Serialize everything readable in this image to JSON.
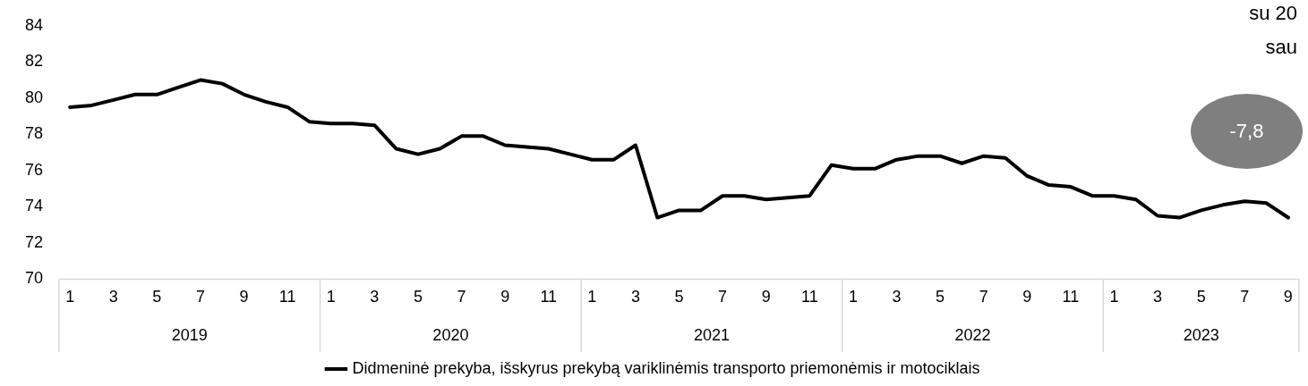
{
  "chart_data": {
    "type": "line",
    "categories": [
      "1",
      null,
      "3",
      null,
      "5",
      null,
      "7",
      null,
      "9",
      null,
      "11",
      null,
      "1",
      null,
      "3",
      null,
      "5",
      null,
      "7",
      null,
      "9",
      null,
      "11",
      null,
      "1",
      null,
      "3",
      null,
      "5",
      null,
      "7",
      null,
      "9",
      null,
      "11",
      null,
      "1",
      null,
      "3",
      null,
      "5",
      null,
      "7",
      null,
      "9",
      null,
      "11",
      null,
      "1",
      null,
      "3",
      null,
      "5",
      null,
      "7",
      null,
      "9"
    ],
    "series": [
      {
        "name": "Didmeninė prekyba, išskyrus prekybą variklinėmis transporto priemonėmis ir motociklais",
        "color": "#000000",
        "values": [
          79.5,
          79.6,
          79.9,
          80.2,
          80.2,
          80.6,
          81.0,
          80.8,
          80.2,
          79.8,
          79.5,
          78.7,
          78.6,
          78.6,
          78.5,
          77.2,
          76.9,
          77.2,
          77.9,
          77.9,
          77.4,
          77.3,
          77.2,
          76.9,
          76.6,
          76.6,
          77.4,
          73.4,
          73.8,
          73.8,
          74.6,
          74.6,
          74.4,
          74.5,
          74.6,
          76.3,
          76.1,
          76.1,
          76.6,
          76.8,
          76.8,
          76.4,
          76.8,
          76.7,
          75.7,
          75.2,
          75.1,
          74.6,
          74.6,
          74.4,
          73.5,
          73.4,
          73.8,
          74.1,
          74.3,
          74.2,
          73.4
        ]
      }
    ],
    "ylim": [
      70,
      84
    ],
    "yticks": [
      70,
      72,
      74,
      76,
      78,
      80,
      82,
      84
    ],
    "grid": false,
    "legend": "bottom",
    "marker": "none",
    "line_style": "solid",
    "annotations": [
      "2019",
      "2020",
      "2021",
      "2022",
      "2023",
      "su 20",
      "sau",
      "-7,8"
    ]
  }
}
